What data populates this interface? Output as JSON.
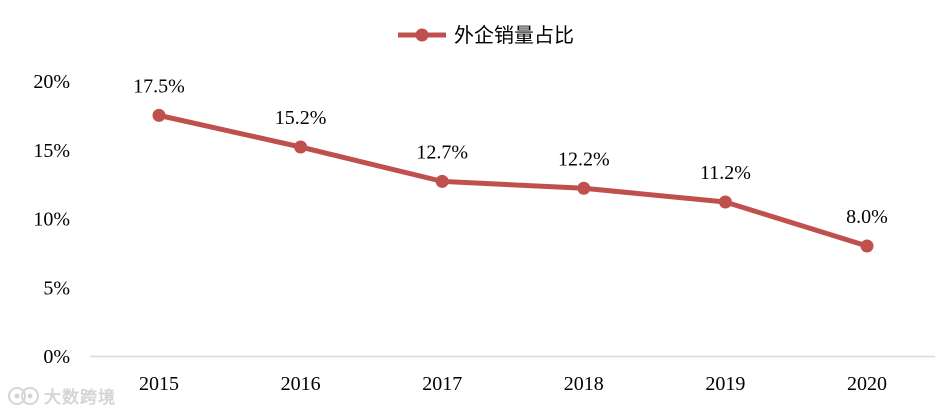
{
  "chart_data": {
    "type": "line",
    "categories": [
      "2015",
      "2016",
      "2017",
      "2018",
      "2019",
      "2020"
    ],
    "series": [
      {
        "name": "外企销量占比",
        "values": [
          17.5,
          15.2,
          12.7,
          12.2,
          11.2,
          8.0
        ],
        "labels": [
          "17.5%",
          "15.2%",
          "12.7%",
          "12.2%",
          "11.2%",
          "8.0%"
        ],
        "color": "#C0504D"
      }
    ],
    "ylim": [
      0,
      20
    ],
    "yticks": [
      0,
      5,
      10,
      15,
      20
    ],
    "ytick_labels": [
      "0%",
      "5%",
      "10%",
      "15%",
      "20%"
    ],
    "grid": false,
    "legend_position": "top-center"
  },
  "watermark": {
    "text": "大数跨境",
    "icon": "logo-icon"
  }
}
